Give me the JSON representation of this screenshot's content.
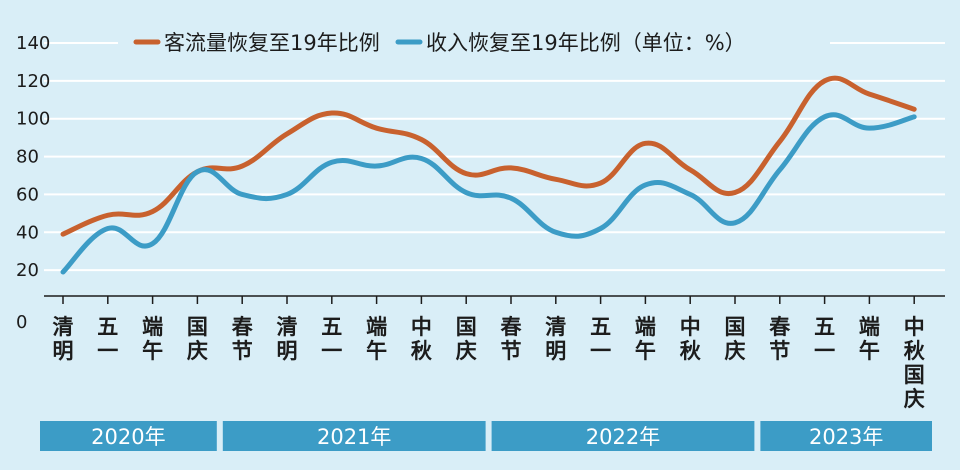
{
  "chart_data": {
    "type": "line",
    "categories": [
      "清明",
      "五一",
      "端午",
      "国庆",
      "春节",
      "清明",
      "五一",
      "端午",
      "中秋",
      "国庆",
      "春节",
      "清明",
      "五一",
      "端午",
      "中秋",
      "国庆",
      "春节",
      "五一",
      "端午",
      "中秋国庆"
    ],
    "category_lines": [
      [
        "清",
        "明"
      ],
      [
        "五",
        "一"
      ],
      [
        "端",
        "午"
      ],
      [
        "国",
        "庆"
      ],
      [
        "春",
        "节"
      ],
      [
        "清",
        "明"
      ],
      [
        "五",
        "一"
      ],
      [
        "端",
        "午"
      ],
      [
        "中",
        "秋"
      ],
      [
        "国",
        "庆"
      ],
      [
        "春",
        "节"
      ],
      [
        "清",
        "明"
      ],
      [
        "五",
        "一"
      ],
      [
        "端",
        "午"
      ],
      [
        "中",
        "秋"
      ],
      [
        "国",
        "庆"
      ],
      [
        "春",
        "节"
      ],
      [
        "五",
        "一"
      ],
      [
        "端",
        "午"
      ],
      [
        "中",
        "秋",
        "国",
        "庆"
      ]
    ],
    "series": [
      {
        "name": "客流量恢复至19年比例",
        "color": "#c8612e",
        "values": [
          39,
          49,
          51,
          72,
          75,
          92,
          103,
          95,
          89,
          71,
          74,
          68,
          66,
          87,
          73,
          61,
          88,
          120,
          113,
          105
        ]
      },
      {
        "name": "收入恢复至19年比例（单位：%）",
        "color": "#3c9cc6",
        "values": [
          19,
          42,
          34,
          72,
          60,
          60,
          77,
          75,
          79,
          61,
          58,
          40,
          42,
          65,
          60,
          45,
          73,
          101,
          95,
          101
        ]
      }
    ],
    "years": [
      {
        "label": "2020年",
        "start": 0,
        "end": 3
      },
      {
        "label": "2021年",
        "start": 4,
        "end": 9
      },
      {
        "label": "2022年",
        "start": 10,
        "end": 15
      },
      {
        "label": "2023年",
        "start": 16,
        "end": 19
      }
    ],
    "ylim": [
      0,
      140
    ],
    "yticks": [
      0,
      20,
      40,
      60,
      80,
      100,
      120,
      140
    ],
    "grid": true,
    "legend_position": "top",
    "colors": {
      "background": "#d9eef7",
      "grid": "#ffffff",
      "year_band": "#3c9cc6"
    }
  }
}
